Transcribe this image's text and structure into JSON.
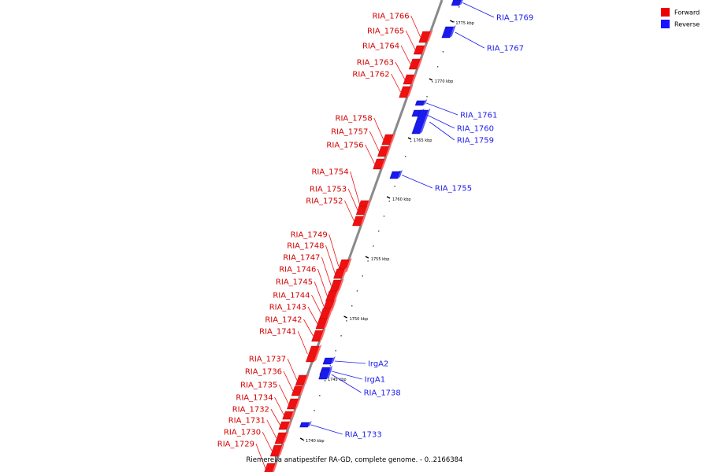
{
  "legend": {
    "forward_label": "Forward",
    "reverse_label": "Reverse",
    "forward_color": "#ee0000",
    "reverse_color": "#1515ff"
  },
  "caption": "Riemerella anatipestifer RA-GD, complete genome. - 0..2166384",
  "colors": {
    "forward": "#ee1111",
    "reverse": "#1a1aee",
    "backbone": "#8a8a8a"
  },
  "chart_data": {
    "type": "linear-genome-map",
    "visible_range_kbp": [
      1738,
      1778
    ],
    "ticks": [
      "1740 kbp",
      "1745 kbp",
      "1750 kbp",
      "1755 kbp",
      "1760 kbp",
      "1765 kbp",
      "1770 kbp",
      "1775 kbp"
    ],
    "forward_genes": [
      "RIA_1766",
      "RIA_1765",
      "RIA_1764",
      "RIA_1763",
      "RIA_1762",
      "RIA_1758",
      "RIA_1757",
      "RIA_1756",
      "RIA_1754",
      "RIA_1753",
      "RIA_1752",
      "RIA_1749",
      "RIA_1748",
      "RIA_1747",
      "RIA_1746",
      "RIA_1745",
      "RIA_1744",
      "RIA_1743",
      "RIA_1742",
      "RIA_1741",
      "RIA_1737",
      "RIA_1736",
      "RIA_1735",
      "RIA_1734",
      "RIA_1732",
      "RIA_1731",
      "RIA_1730",
      "RIA_1729"
    ],
    "reverse_genes": [
      "RIA_1769",
      "RIA_1767",
      "RIA_1761",
      "RIA_1760",
      "RIA_1759",
      "RIA_1755",
      "IrgA2",
      "IrgA1",
      "RIA_1738",
      "RIA_1733"
    ]
  }
}
